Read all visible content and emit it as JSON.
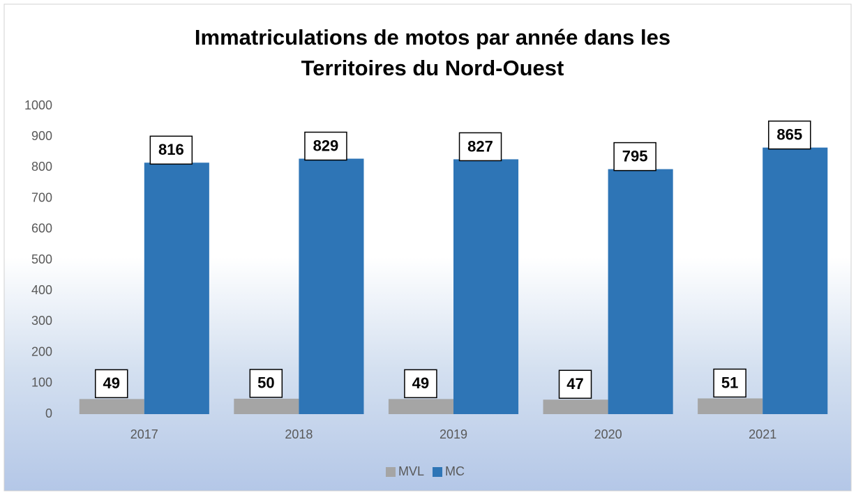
{
  "chart_data": {
    "type": "bar",
    "title": [
      "Immatriculations de motos par année dans les",
      "Territoires du Nord-Ouest"
    ],
    "categories": [
      "2017",
      "2018",
      "2019",
      "2020",
      "2021"
    ],
    "series": [
      {
        "name": "MVL",
        "color": "#a5a5a5",
        "values": [
          49,
          50,
          49,
          47,
          51
        ]
      },
      {
        "name": "MC",
        "color": "#2e75b6",
        "values": [
          816,
          829,
          827,
          795,
          865
        ]
      }
    ],
    "ylim": [
      0,
      1000
    ],
    "yticks": [
      0,
      100,
      200,
      300,
      400,
      500,
      600,
      700,
      800,
      900,
      1000
    ],
    "legend": "bottom"
  }
}
